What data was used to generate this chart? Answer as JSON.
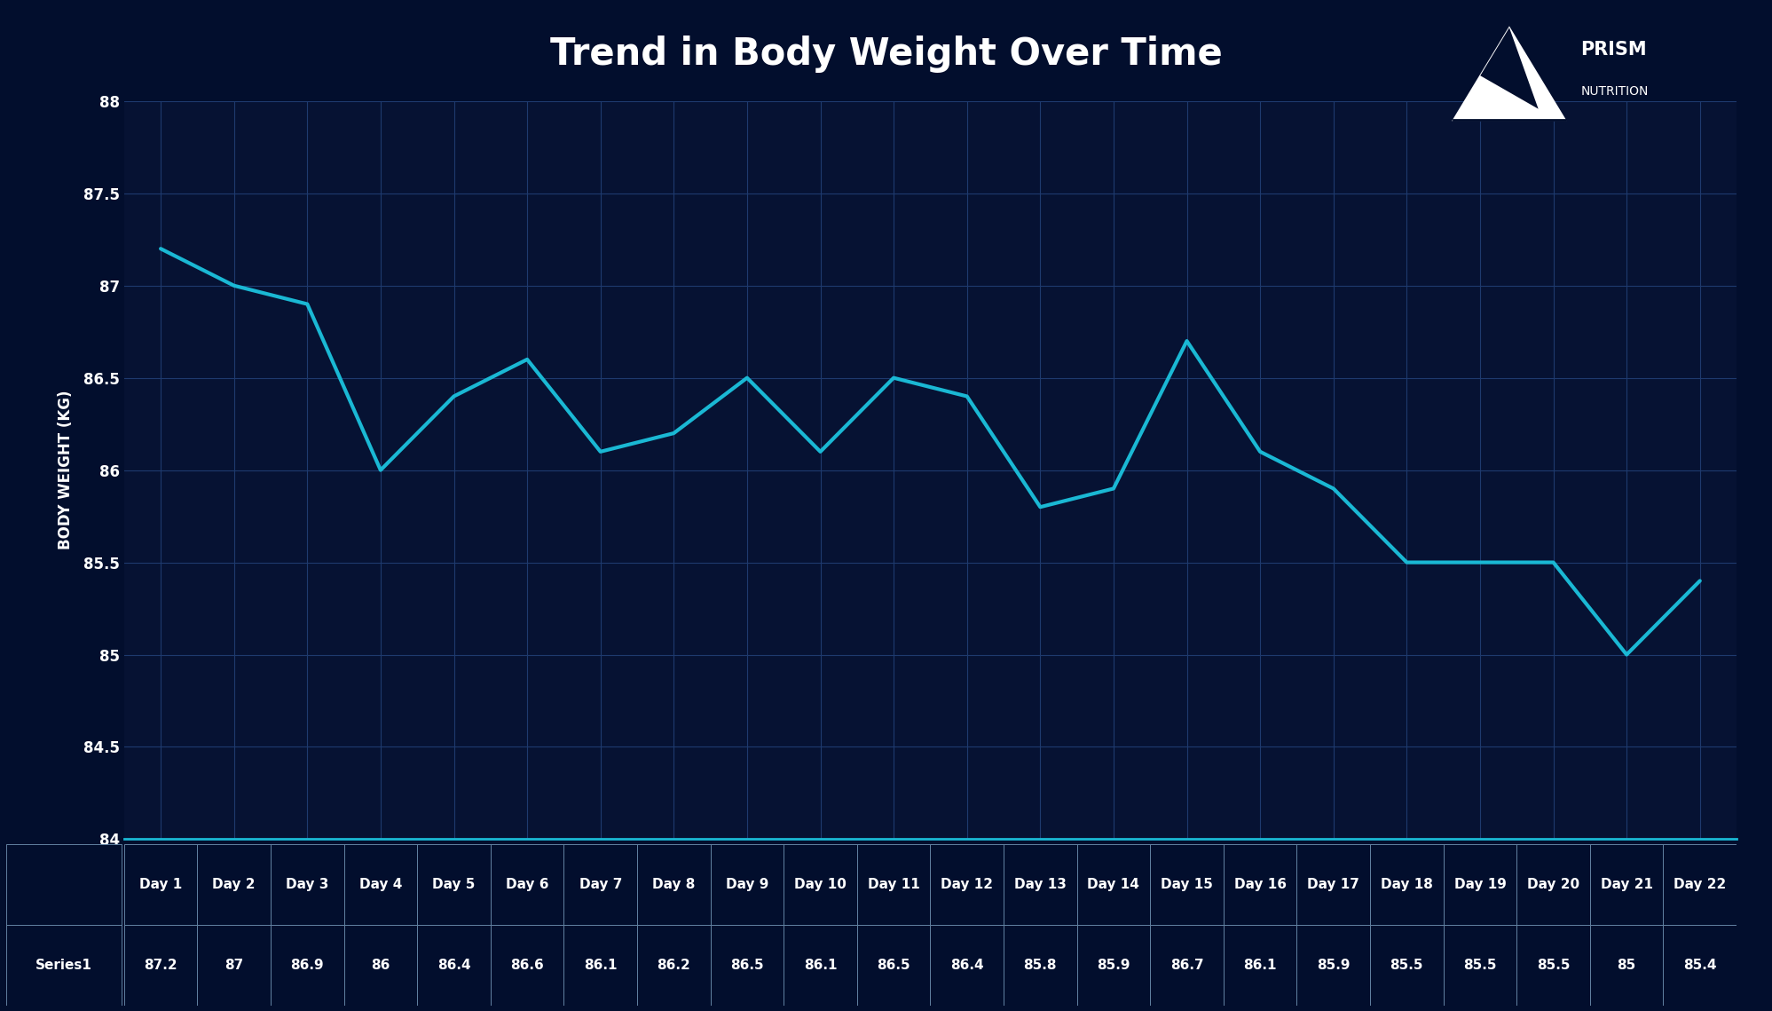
{
  "title": "Trend in Body Weight Over Time",
  "ylabel": "BODY WEIGHT (KG)",
  "days": [
    "Day 1",
    "Day 2",
    "Day 3",
    "Day 4",
    "Day 5",
    "Day 6",
    "Day 7",
    "Day 8",
    "Day 9",
    "Day 10",
    "Day 11",
    "Day 12",
    "Day 13",
    "Day 14",
    "Day 15",
    "Day 16",
    "Day 17",
    "Day 18",
    "Day 19",
    "Day 20",
    "Day 21",
    "Day 22"
  ],
  "values": [
    87.2,
    87.0,
    86.9,
    86.0,
    86.4,
    86.6,
    86.1,
    86.2,
    86.5,
    86.1,
    86.5,
    86.4,
    85.8,
    85.9,
    86.7,
    86.1,
    85.9,
    85.5,
    85.5,
    85.5,
    85.0,
    85.4
  ],
  "series_label": "Series1",
  "bg_color": "#020e2d",
  "plot_bg_color": "#061233",
  "line_color": "#1ab8d4",
  "grid_color": "#1e3a6e",
  "table_border_color": "#6080a0",
  "text_color": "#ffffff",
  "ylim": [
    84.0,
    88.0
  ],
  "yticks": [
    84.0,
    84.5,
    85.0,
    85.5,
    86.0,
    86.5,
    87.0,
    87.5,
    88.0
  ],
  "ytick_labels": [
    "84",
    "84.5",
    "85",
    "85.5",
    "86",
    "86.5",
    "87",
    "87.5",
    "88"
  ],
  "title_fontsize": 30,
  "axis_label_fontsize": 12,
  "tick_fontsize": 12,
  "table_fontsize": 11,
  "line_width": 3.0,
  "logo_text_prism": "PRISM",
  "logo_text_nutrition": "NUTRITION"
}
